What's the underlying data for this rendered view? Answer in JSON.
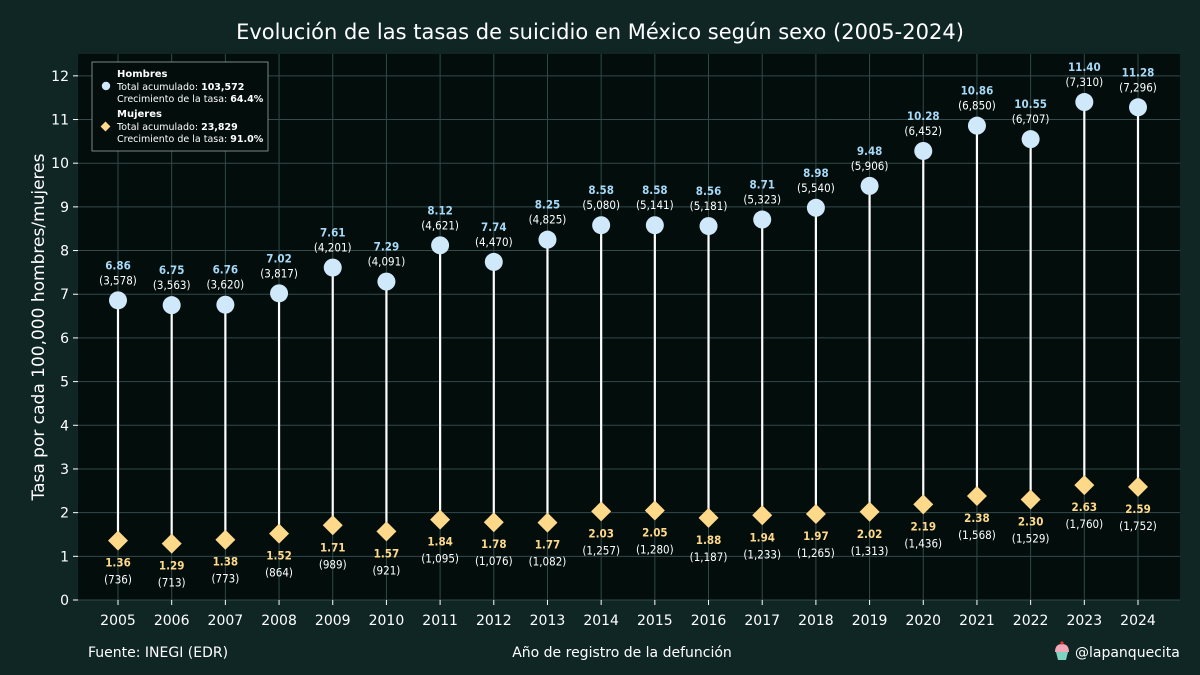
{
  "chart_data": {
    "type": "scatter",
    "title": "Evolución de las tasas de suicidio en México según sexo (2005-2024)",
    "xlabel": "Año de registro de la defunción",
    "ylabel": "Tasa por cada 100,000 hombres/mujeres",
    "ylim": [
      0,
      12.5
    ],
    "yticks": [
      "0",
      "1",
      "2",
      "3",
      "4",
      "5",
      "6",
      "7",
      "8",
      "9",
      "10",
      "11",
      "12"
    ],
    "grid": true,
    "categories": [
      "2005",
      "2006",
      "2007",
      "2008",
      "2009",
      "2010",
      "2011",
      "2012",
      "2013",
      "2014",
      "2015",
      "2016",
      "2017",
      "2018",
      "2019",
      "2020",
      "2021",
      "2022",
      "2023",
      "2024"
    ],
    "series": [
      {
        "name": "Hombres",
        "marker": "circle",
        "color": "#cfe9fb",
        "label_color": "#a6d9f7",
        "values": [
          6.86,
          6.75,
          6.76,
          7.02,
          7.61,
          7.29,
          8.12,
          7.74,
          8.25,
          8.58,
          8.58,
          8.56,
          8.71,
          8.98,
          9.48,
          10.28,
          10.86,
          10.55,
          11.4,
          11.28
        ],
        "value_labels": [
          "6.86",
          "6.75",
          "6.76",
          "7.02",
          "7.61",
          "7.29",
          "8.12",
          "7.74",
          "8.25",
          "8.58",
          "8.58",
          "8.56",
          "8.71",
          "8.98",
          "9.48",
          "10.28",
          "10.86",
          "10.55",
          "11.40",
          "11.28"
        ],
        "counts": [
          "(3,578)",
          "(3,563)",
          "(3,620)",
          "(3,817)",
          "(4,201)",
          "(4,091)",
          "(4,621)",
          "(4,470)",
          "(4,825)",
          "(5,080)",
          "(5,141)",
          "(5,181)",
          "(5,323)",
          "(5,540)",
          "(5,906)",
          "(6,452)",
          "(6,850)",
          "(6,707)",
          "(7,310)",
          "(7,296)"
        ]
      },
      {
        "name": "Mujeres",
        "marker": "diamond",
        "color": "#ffd98a",
        "label_color": "#ffd98a",
        "values": [
          1.36,
          1.29,
          1.38,
          1.52,
          1.71,
          1.57,
          1.84,
          1.78,
          1.77,
          2.03,
          2.05,
          1.88,
          1.94,
          1.97,
          2.02,
          2.19,
          2.38,
          2.3,
          2.63,
          2.59
        ],
        "value_labels": [
          "1.36",
          "1.29",
          "1.38",
          "1.52",
          "1.71",
          "1.57",
          "1.84",
          "1.78",
          "1.77",
          "2.03",
          "2.05",
          "1.88",
          "1.94",
          "1.97",
          "2.02",
          "2.19",
          "2.38",
          "2.30",
          "2.63",
          "2.59"
        ],
        "counts": [
          "(736)",
          "(713)",
          "(773)",
          "(864)",
          "(989)",
          "(921)",
          "(1,095)",
          "(1,076)",
          "(1,082)",
          "(1,257)",
          "(1,280)",
          "(1,187)",
          "(1,233)",
          "(1,265)",
          "(1,313)",
          "(1,436)",
          "(1,568)",
          "(1,529)",
          "(1,760)",
          "(1,752)"
        ]
      }
    ],
    "legend": {
      "position": "top-left",
      "entries": [
        {
          "name": "Hombres",
          "total_label": "Total acumulado: ",
          "total": "103,572",
          "growth_label": "Crecimiento de la tasa: ",
          "growth": "64.4%"
        },
        {
          "name": "Mujeres",
          "total_label": "Total acumulado: ",
          "total": "23,829",
          "growth_label": "Crecimiento de la tasa: ",
          "growth": "91.0%"
        }
      ]
    }
  },
  "footer": {
    "source": "Fuente: INEGI (EDR)",
    "handle": "@lapanquecita"
  },
  "colors": {
    "background": "#0f2624",
    "plot_background": "#020d0c",
    "grid": "#33494a",
    "stem": "#ffffff"
  }
}
